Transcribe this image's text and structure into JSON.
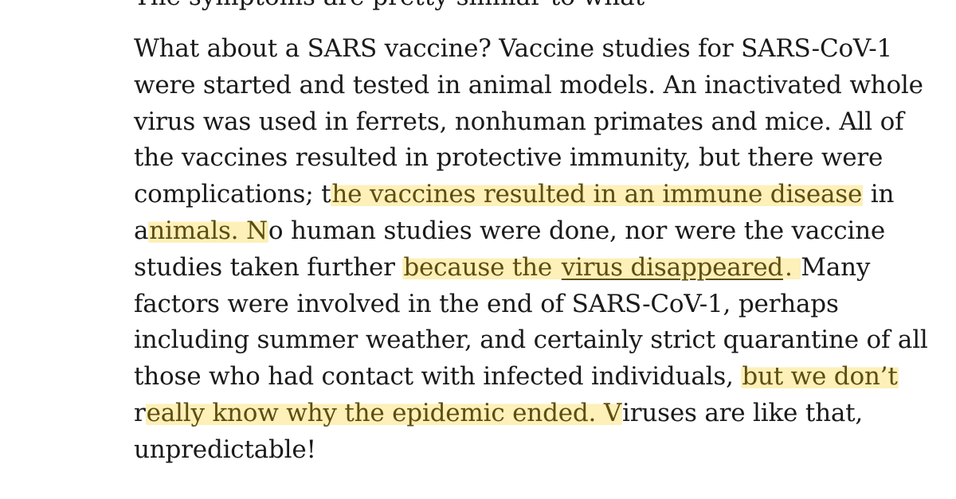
{
  "article": {
    "clipped_top_line": "The symptoms are pretty similar to what",
    "lines": [
      [
        {
          "t": "What about a SARS vaccine? Vaccine studies for SARS-CoV-1"
        }
      ],
      [
        {
          "t": "were started and tested in animal models. An inactivated whole"
        }
      ],
      [
        {
          "t": "virus was used in ferrets, nonhuman primates and mice. All of"
        }
      ],
      [
        {
          "t": "the vaccines resulted in protective immunity, but there were"
        }
      ],
      [
        {
          "t": "complications; t"
        },
        {
          "t": "he vaccines resulted in an immune disease",
          "hl": true
        },
        {
          "t": " in"
        }
      ],
      [
        {
          "t": "a"
        },
        {
          "t": "nimals. N",
          "hl": true
        },
        {
          "t": "o human studies were done, nor were the vaccine"
        }
      ],
      [
        {
          "t": "studies taken further "
        },
        {
          "t": "because the ",
          "hl": true
        },
        {
          "t": "virus disappeared",
          "hl": true,
          "link": true
        },
        {
          "t": ". ",
          "hl": true
        },
        {
          "t": "Many"
        }
      ],
      [
        {
          "t": "factors were involved in the end of SARS-CoV-1, perhaps"
        }
      ],
      [
        {
          "t": "including summer weather, and certainly strict quarantine of all"
        }
      ],
      [
        {
          "t": "those who had contact with infected individuals, "
        },
        {
          "t": "but we don’t",
          "hl": true
        }
      ],
      [
        {
          "t": "r"
        },
        {
          "t": "eally know why the epidemic ended. V",
          "hl": true
        },
        {
          "t": "iruses are like that,"
        }
      ],
      [
        {
          "t": "unpredictable!"
        }
      ]
    ]
  },
  "colors": {
    "highlight": "#fdf0b8",
    "highlight_text": "#5e4d10",
    "body_text": "#1a1a1a"
  }
}
